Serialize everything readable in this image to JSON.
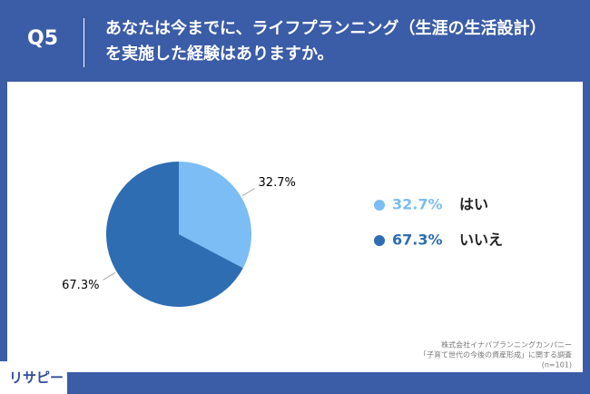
{
  "question_number": "Q5",
  "chart_data": {
    "type": "pie",
    "title": [
      "あなたは今までに、ライフプランニング（生涯の生活設計）",
      "を実施した経験はありますか。"
    ],
    "categories": [
      "はい",
      "いいえ"
    ],
    "values": [
      32.7,
      67.3
    ],
    "value_labels": [
      "32.7%",
      "67.3%"
    ],
    "colors": [
      "#7bbdf4",
      "#2f6db2"
    ],
    "legend": "right"
  },
  "source": [
    "株式会社イナバプランニングカンパニー",
    "「子育て世代の今後の資産形成」に関する調査",
    "(n=101)"
  ],
  "brand": "リサピー"
}
